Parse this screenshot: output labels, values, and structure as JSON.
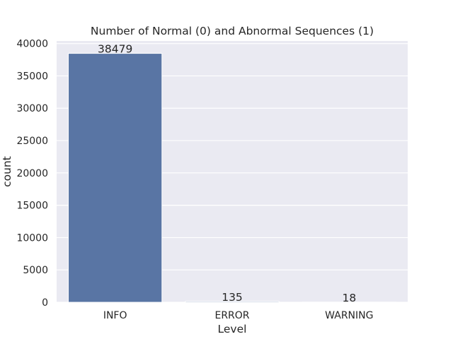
{
  "chart_data": {
    "type": "bar",
    "title": "Number of Normal (0) and Abnormal Sequences (1)",
    "xlabel": "Level",
    "ylabel": "count",
    "categories": [
      "INFO",
      "ERROR",
      "WARNING"
    ],
    "values": [
      38479,
      135,
      18
    ],
    "data_labels": [
      "38479",
      "135",
      "18"
    ],
    "ylim": [
      0,
      40400
    ],
    "yticks": [
      0,
      5000,
      10000,
      15000,
      20000,
      25000,
      30000,
      35000,
      40000
    ],
    "grid": true,
    "colors": {
      "bar": "#5975a4",
      "plot_background": "#eaeaf2",
      "grid": "#ffffff",
      "text": "#262626"
    }
  }
}
